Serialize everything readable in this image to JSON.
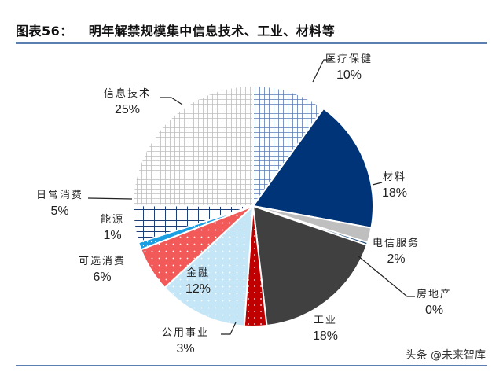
{
  "header": {
    "figure_label": "图表56：",
    "title": "明年解禁规模集中信息技术、工业、材料等"
  },
  "watermark": "头条 @未来智库",
  "chart_data": {
    "type": "pie",
    "title": "明年解禁规模集中信息技术、工业、材料等",
    "start_angle": "12 o'clock, clockwise",
    "categories": [
      "医疗保健",
      "材料",
      "电信服务",
      "房地产",
      "工业",
      "公用事业",
      "金融",
      "可选消费",
      "能源",
      "日常消费",
      "信息技术"
    ],
    "values": [
      10,
      18,
      2,
      0,
      18,
      3,
      12,
      6,
      1,
      5,
      25
    ],
    "labels": [
      "10%",
      "18%",
      "2%",
      "0%",
      "18%",
      "3%",
      "12%",
      "6%",
      "1%",
      "5%",
      "25%"
    ],
    "colors": [
      "#5b7bb5",
      "#003478",
      "#bfbfbf",
      "#1f4e79",
      "#404040",
      "#c00000",
      "#c5e6f7",
      "#f25a5a",
      "#1b9de2",
      "#1c3f7a",
      "#c8c8c8"
    ],
    "patterns": [
      "grid-blue",
      "solid",
      "solid",
      "solid",
      "solid",
      "dots",
      "dots",
      "dots",
      "dots",
      "grid-navy",
      "grid-gray"
    ]
  },
  "labels": {
    "healthcare": {
      "name": "医疗保健",
      "pct": "10%"
    },
    "materials": {
      "name": "材料",
      "pct": "18%"
    },
    "telecom": {
      "name": "电信服务",
      "pct": "2%"
    },
    "realestate": {
      "name": "房地产",
      "pct": "0%"
    },
    "industrials": {
      "name": "工业",
      "pct": "18%"
    },
    "utilities": {
      "name": "公用事业",
      "pct": "3%"
    },
    "financials": {
      "name": "金融",
      "pct": "12%"
    },
    "consumer_disc": {
      "name": "可选消费",
      "pct": "6%"
    },
    "energy": {
      "name": "能源",
      "pct": "1%"
    },
    "consumer_staples": {
      "name": "日常消费",
      "pct": "5%"
    },
    "it": {
      "name": "信息技术",
      "pct": "25%"
    }
  }
}
